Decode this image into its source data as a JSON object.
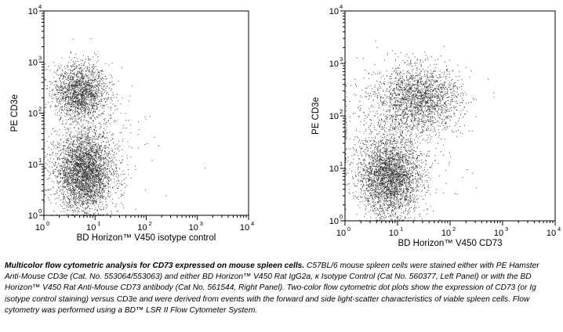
{
  "chart_data": [
    {
      "type": "scatter",
      "panel": "left",
      "title": "",
      "xlabel": "BD Horizon™ V450 isotype control",
      "ylabel": "PE CD3e",
      "xscale": "log",
      "yscale": "log",
      "xlim": [
        1,
        10000
      ],
      "ylim": [
        1,
        10000
      ],
      "x_ticks": [
        "10",
        "10",
        "10",
        "10",
        "10"
      ],
      "x_tick_exponents": [
        "0",
        "1",
        "2",
        "3",
        "4"
      ],
      "y_ticks": [
        "10",
        "10",
        "10",
        "10",
        "10"
      ],
      "y_tick_exponents": [
        "0",
        "1",
        "2",
        "3",
        "4"
      ],
      "grid": false,
      "legend": "none",
      "populations": [
        {
          "x_center": 6,
          "y_center": 7,
          "x_spread_decades": 0.28,
          "y_spread_decades": 0.38,
          "relative_density": 0.62
        },
        {
          "x_center": 5,
          "y_center": 270,
          "x_spread_decades": 0.25,
          "y_spread_decades": 0.27,
          "relative_density": 0.33
        },
        {
          "x_center": 10,
          "y_center": 30,
          "x_spread_decades": 0.5,
          "y_spread_decades": 0.6,
          "relative_density": 0.05
        }
      ]
    },
    {
      "type": "scatter",
      "panel": "right",
      "title": "",
      "xlabel": "BD Horizon™ V450 CD73",
      "ylabel": "PE CD3e",
      "xscale": "log",
      "yscale": "log",
      "xlim": [
        1,
        10000
      ],
      "ylim": [
        1,
        10000
      ],
      "x_ticks": [
        "10",
        "10",
        "10",
        "10",
        "10"
      ],
      "x_tick_exponents": [
        "0",
        "1",
        "2",
        "3",
        "4"
      ],
      "y_ticks": [
        "10",
        "10",
        "10",
        "10",
        "10"
      ],
      "y_tick_exponents": [
        "0",
        "1",
        "2",
        "3",
        "4"
      ],
      "grid": false,
      "legend": "none",
      "populations": [
        {
          "x_center": 7,
          "y_center": 7,
          "x_spread_decades": 0.3,
          "y_spread_decades": 0.36,
          "relative_density": 0.55
        },
        {
          "x_center": 25,
          "y_center": 220,
          "x_spread_decades": 0.4,
          "y_spread_decades": 0.3,
          "relative_density": 0.35
        },
        {
          "x_center": 10,
          "y_center": 60,
          "x_spread_decades": 0.55,
          "y_spread_decades": 0.55,
          "relative_density": 0.1
        }
      ]
    }
  ],
  "caption": {
    "lead": "Multicolor flow cytometric analysis for CD73 expressed on mouse spleen cells.",
    "body": " C57BL/6 mouse spleen cells were stained either with PE Hamster Anti-Mouse CD3e (Cat. No. 553064/553063) and either BD Horizon™ V450 Rat IgG2a, κ Isotype Control (Cat No. 560377, Left Panel) or with the BD Horizon™ V450 Rat Anti-Mouse CD73 antibody (Cat No. 561544, Right Panel). Two-color flow cytometric dot plots show the expression of CD73 (or Ig isotype control staining) versus CD3e and were derived from events with the forward and side light-scatter characteristics of viable spleen cells. Flow cytometry was performed using a BD™ LSR II Flow Cytometer System."
  }
}
